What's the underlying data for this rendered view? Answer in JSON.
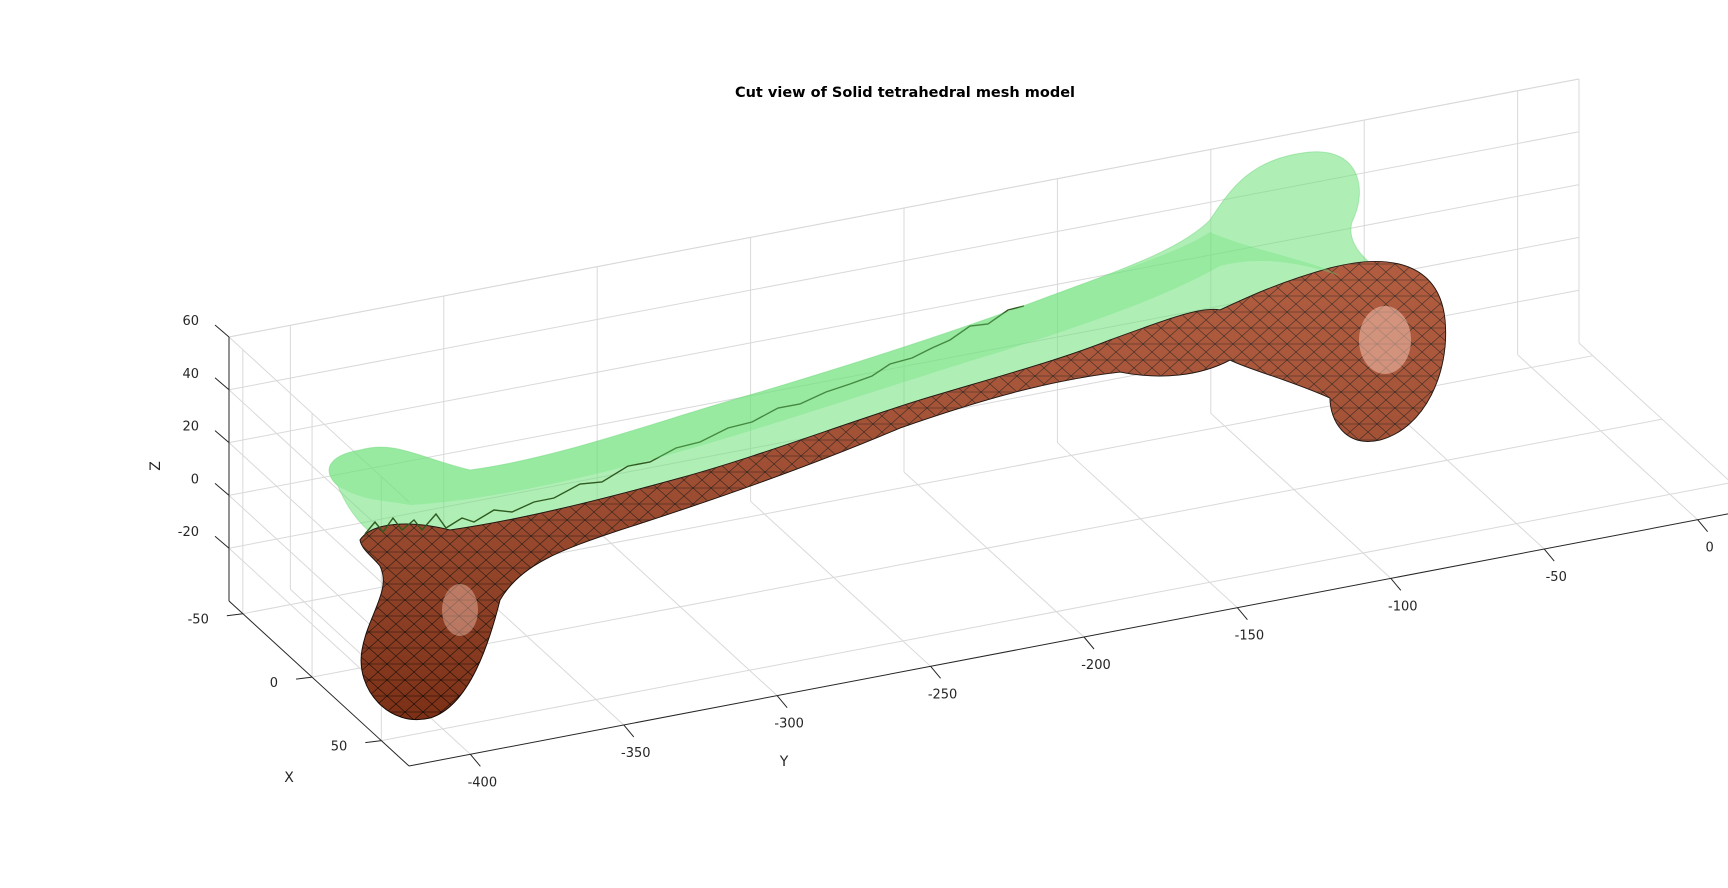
{
  "chart_data": {
    "type": "3d-surface",
    "title": "Cut view of Solid tetrahedral mesh model",
    "xlabel": "X",
    "ylabel": "Y",
    "zlabel": "Z",
    "x_ticks": [
      "-50",
      "0",
      "50"
    ],
    "y_ticks": [
      "-400",
      "-350",
      "-300",
      "-250",
      "-200",
      "-150",
      "-100",
      "-50",
      "0"
    ],
    "z_ticks": [
      "60",
      "40",
      "20",
      "0",
      "-20"
    ],
    "xlim": [
      -60,
      70
    ],
    "ylim": [
      -420,
      20
    ],
    "zlim": [
      -40,
      60
    ],
    "grid": true,
    "box": true,
    "series": [
      {
        "role": "transparent outer surface",
        "color": "#6EE27A",
        "alpha": 0.55
      },
      {
        "role": "cut tetrahedral solid mesh",
        "color": "#9E3A1A",
        "edge_color": "#000000"
      }
    ]
  }
}
